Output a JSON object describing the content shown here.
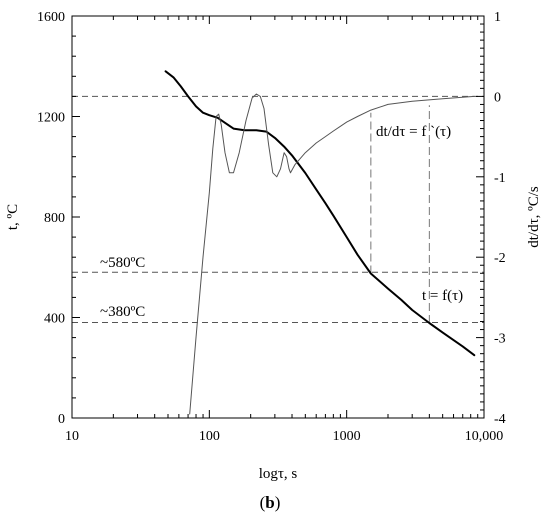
{
  "chart_data": {
    "type": "line",
    "x_scale": "log",
    "x_range": [
      10,
      10000
    ],
    "y_left_range": [
      0,
      1600
    ],
    "y_right_range": [
      -4,
      1
    ],
    "x_ticks": [
      {
        "value": 10,
        "label": "10"
      },
      {
        "value": 100,
        "label": "100"
      },
      {
        "value": 1000,
        "label": "1000"
      },
      {
        "value": 10000,
        "label": "10,000"
      }
    ],
    "y_left_ticks": [
      {
        "value": 0,
        "label": "0"
      },
      {
        "value": 400,
        "label": "400"
      },
      {
        "value": 800,
        "label": "800"
      },
      {
        "value": 1200,
        "label": "1200"
      },
      {
        "value": 1600,
        "label": "1600"
      }
    ],
    "y_right_ticks": [
      {
        "value": 1,
        "label": "1"
      },
      {
        "value": 0,
        "label": "0"
      },
      {
        "value": -1,
        "label": "-1"
      },
      {
        "value": -2,
        "label": "-2"
      },
      {
        "value": -3,
        "label": "-3"
      },
      {
        "value": -4,
        "label": "-4"
      }
    ],
    "xlabel": "logτ, s",
    "ylabel_left": "t, ºC",
    "ylabel_right": "dt/dτ, ºC/s",
    "caption_prefix": "(",
    "caption_bold": "b",
    "caption_suffix": ")",
    "series": [
      {
        "name": "t = f(τ)",
        "axis": "left",
        "color": "#000000",
        "points": [
          [
            48,
            1380
          ],
          [
            55,
            1355
          ],
          [
            62,
            1320
          ],
          [
            70,
            1280
          ],
          [
            80,
            1240
          ],
          [
            90,
            1215
          ],
          [
            100,
            1205
          ],
          [
            115,
            1195
          ],
          [
            130,
            1175
          ],
          [
            150,
            1152
          ],
          [
            180,
            1145
          ],
          [
            220,
            1145
          ],
          [
            260,
            1140
          ],
          [
            300,
            1115
          ],
          [
            350,
            1080
          ],
          [
            400,
            1045
          ],
          [
            500,
            975
          ],
          [
            600,
            910
          ],
          [
            700,
            855
          ],
          [
            800,
            805
          ],
          [
            1000,
            720
          ],
          [
            1200,
            650
          ],
          [
            1500,
            575
          ],
          [
            2000,
            515
          ],
          [
            2500,
            470
          ],
          [
            3000,
            430
          ],
          [
            3500,
            402
          ],
          [
            4000,
            378
          ],
          [
            5000,
            340
          ],
          [
            6000,
            310
          ],
          [
            7000,
            285
          ],
          [
            8500,
            250
          ]
        ]
      },
      {
        "name": "dt/dτ = f `(τ)",
        "axis": "right",
        "color": "#555555",
        "points": [
          [
            72,
            -3.95
          ],
          [
            80,
            -3.0
          ],
          [
            90,
            -2.0
          ],
          [
            100,
            -1.2
          ],
          [
            106,
            -0.65
          ],
          [
            112,
            -0.25
          ],
          [
            117,
            -0.22
          ],
          [
            122,
            -0.35
          ],
          [
            130,
            -0.7
          ],
          [
            140,
            -0.95
          ],
          [
            150,
            -0.95
          ],
          [
            165,
            -0.7
          ],
          [
            185,
            -0.3
          ],
          [
            205,
            -0.02
          ],
          [
            220,
            0.03
          ],
          [
            235,
            0.0
          ],
          [
            250,
            -0.15
          ],
          [
            270,
            -0.6
          ],
          [
            290,
            -0.95
          ],
          [
            310,
            -1.0
          ],
          [
            330,
            -0.9
          ],
          [
            350,
            -0.7
          ],
          [
            365,
            -0.75
          ],
          [
            380,
            -0.9
          ],
          [
            390,
            -0.95
          ],
          [
            420,
            -0.85
          ],
          [
            500,
            -0.7
          ],
          [
            600,
            -0.58
          ],
          [
            700,
            -0.5
          ],
          [
            800,
            -0.43
          ],
          [
            1000,
            -0.32
          ],
          [
            1200,
            -0.25
          ],
          [
            1500,
            -0.17
          ],
          [
            2000,
            -0.1
          ],
          [
            3000,
            -0.06
          ],
          [
            5000,
            -0.03
          ],
          [
            8500,
            0.0
          ]
        ]
      }
    ],
    "reference_lines": [
      {
        "axis": "right",
        "value": 0
      },
      {
        "axis": "left",
        "value": 580
      },
      {
        "axis": "left",
        "value": 380
      }
    ],
    "vertical_lines": [
      {
        "x": 1500,
        "y_from": 575,
        "y_to": 1215
      },
      {
        "x": 4000,
        "y_from": 378,
        "y_to": 1245
      }
    ],
    "annotations": {
      "t580": "~580ºC",
      "t380": "~380ºC",
      "dt_curve": "dt/dτ = f `(τ)",
      "t_curve": "t = f(τ)"
    }
  }
}
